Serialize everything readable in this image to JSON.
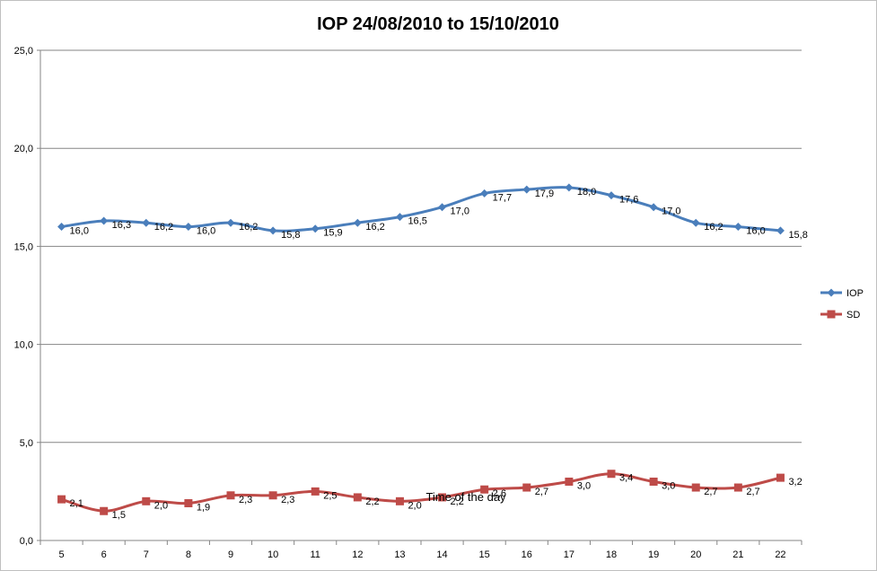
{
  "chart_data": {
    "type": "line",
    "title": "IOP 24/08/2010 to 15/10/2010",
    "xlabel": "Time of the day",
    "ylabel": "",
    "categories": [
      "5",
      "6",
      "7",
      "8",
      "9",
      "10",
      "11",
      "12",
      "13",
      "14",
      "15",
      "16",
      "17",
      "18",
      "19",
      "20",
      "21",
      "22"
    ],
    "ylim": [
      0,
      25
    ],
    "yticks": [
      "0,0",
      "5,0",
      "10,0",
      "15,0",
      "20,0",
      "25,0"
    ],
    "grid": true,
    "legend": "right",
    "series": [
      {
        "name": "IOP",
        "color": "#4a7ebb",
        "marker": "diamond",
        "values": [
          16.0,
          16.3,
          16.2,
          16.0,
          16.2,
          15.8,
          15.9,
          16.2,
          16.5,
          17.0,
          17.7,
          17.9,
          18.0,
          17.6,
          17.0,
          16.2,
          16.0,
          15.8
        ],
        "labels": [
          "16,0",
          "16,3",
          "16,2",
          "16,0",
          "16,2",
          "15,8",
          "15,9",
          "16,2",
          "16,5",
          "17,0",
          "17,7",
          "17,9",
          "18,0",
          "17,6",
          "17,0",
          "16,2",
          "16,0",
          "15,8"
        ]
      },
      {
        "name": "SD",
        "color": "#be4b48",
        "marker": "square",
        "values": [
          2.1,
          1.5,
          2.0,
          1.9,
          2.3,
          2.3,
          2.5,
          2.2,
          2.0,
          2.2,
          2.6,
          2.7,
          3.0,
          3.4,
          3.0,
          2.7,
          2.7,
          3.2
        ],
        "labels": [
          "2,1",
          "1,5",
          "2,0",
          "1,9",
          "2,3",
          "2,3",
          "2,5",
          "2,2",
          "2,0",
          "2,2",
          "2,6",
          "2,7",
          "3,0",
          "3,4",
          "3,0",
          "2,7",
          "2,7",
          "3,2"
        ]
      }
    ]
  }
}
